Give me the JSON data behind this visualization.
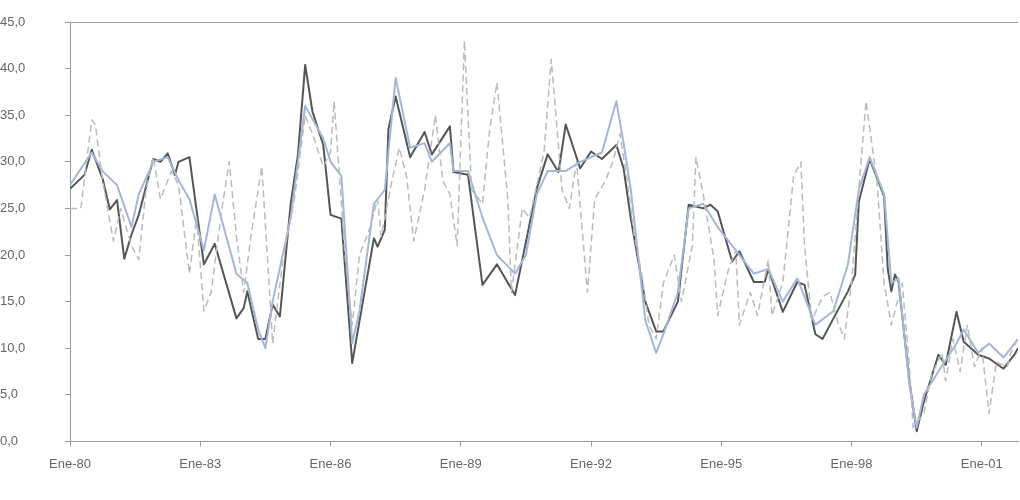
{
  "chart_data": {
    "type": "line",
    "marker": "none",
    "xlim": [
      "1980-01",
      "2001-11"
    ],
    "xticks": [
      {
        "value": "1980-01",
        "label": "Ene-80"
      },
      {
        "value": "1983-01",
        "label": "Ene-83"
      },
      {
        "value": "1986-01",
        "label": "Ene-86"
      },
      {
        "value": "1989-01",
        "label": "Ene-89"
      },
      {
        "value": "1992-01",
        "label": "Ene-92"
      },
      {
        "value": "1995-01",
        "label": "Ene-95"
      },
      {
        "value": "1998-01",
        "label": "Ene-98"
      },
      {
        "value": "2001-01",
        "label": "Ene-01"
      }
    ],
    "ylim": [
      0,
      45
    ],
    "yticks": [
      {
        "value": 0,
        "label": "0,0"
      },
      {
        "value": 5,
        "label": "5,0"
      },
      {
        "value": 10,
        "label": "10,0"
      },
      {
        "value": 15,
        "label": "15,0"
      },
      {
        "value": 20,
        "label": "20,0"
      },
      {
        "value": 25,
        "label": "25,0"
      },
      {
        "value": 30,
        "label": "30,0"
      },
      {
        "value": 35,
        "label": "35,0"
      },
      {
        "value": 40,
        "label": "40,0"
      },
      {
        "value": 45,
        "label": "45,0"
      }
    ],
    "series": [
      {
        "color": "#bbbbbb",
        "line_style": "dashed",
        "x": [
          "1980-01",
          "1980-04",
          "1980-07",
          "1980-08",
          "1980-10",
          "1981-01",
          "1981-03",
          "1981-06",
          "1981-08",
          "1981-10",
          "1981-12",
          "1982-02",
          "1982-05",
          "1982-07",
          "1982-10",
          "1982-12",
          "1983-02",
          "1983-04",
          "1983-07",
          "1983-09",
          "1983-11",
          "1984-01",
          "1984-03",
          "1984-06",
          "1984-08",
          "1984-09",
          "1984-12",
          "1985-03",
          "1985-06",
          "1985-08",
          "1985-11",
          "1986-01",
          "1986-02",
          "1986-05",
          "1986-07",
          "1986-09",
          "1986-12",
          "1987-02",
          "1987-03",
          "1987-06",
          "1987-08",
          "1987-10",
          "1987-12",
          "1988-03",
          "1988-06",
          "1988-08",
          "1988-10",
          "1988-12",
          "1989-02",
          "1989-04",
          "1989-07",
          "1989-09",
          "1989-11",
          "1990-02",
          "1990-03",
          "1990-06",
          "1990-08",
          "1990-12",
          "1991-02",
          "1991-05",
          "1991-07",
          "1991-09",
          "1991-12",
          "1992-02",
          "1992-05",
          "1992-07",
          "1992-09",
          "1992-11",
          "1993-01",
          "1993-03",
          "1993-05",
          "1993-07",
          "1993-09",
          "1993-12",
          "1994-02",
          "1994-05",
          "1994-06",
          "1994-08",
          "1994-11",
          "1994-12",
          "1995-03",
          "1995-05",
          "1995-06",
          "1995-09",
          "1995-11",
          "1996-02",
          "1996-03",
          "1996-06",
          "1996-09",
          "1996-11",
          "1996-12",
          "1997-02",
          "1997-05",
          "1997-07",
          "1997-09",
          "1997-11",
          "1998-01",
          "1998-03",
          "1998-05",
          "1998-08",
          "1998-10",
          "1998-12",
          "1999-03",
          "1999-05",
          "1999-06",
          "1999-09",
          "1999-11",
          "2000-02",
          "2000-03",
          "2000-05",
          "2000-07",
          "2000-09",
          "2000-11",
          "2001-01",
          "2001-03",
          "2001-05",
          "2001-08",
          "2001-09",
          "2001-11"
        ],
        "values": [
          25.0,
          25.0,
          34.5,
          34.0,
          28.0,
          21.5,
          25.0,
          21.0,
          19.5,
          27.0,
          30.5,
          26.0,
          29.0,
          27.5,
          18.0,
          24.0,
          14.0,
          16.0,
          25.0,
          30.0,
          22.0,
          16.0,
          22.0,
          29.5,
          17.0,
          10.5,
          20.0,
          26.0,
          35.0,
          33.0,
          29.5,
          31.0,
          36.5,
          20.0,
          12.5,
          20.0,
          23.0,
          26.0,
          22.0,
          28.0,
          31.5,
          28.5,
          21.5,
          27.0,
          35.0,
          28.0,
          26.5,
          21.0,
          43.0,
          27.0,
          25.5,
          33.5,
          38.5,
          26.0,
          16.0,
          25.0,
          24.0,
          31.0,
          41.0,
          27.0,
          25.0,
          30.0,
          16.0,
          26.0,
          28.0,
          30.0,
          33.0,
          28.0,
          22.0,
          18.0,
          12.5,
          11.0,
          17.0,
          20.0,
          15.0,
          21.0,
          30.5,
          26.5,
          19.5,
          13.5,
          18.5,
          20.5,
          12.5,
          16.0,
          13.5,
          19.5,
          13.5,
          17.0,
          28.5,
          30.0,
          21.0,
          13.0,
          15.5,
          16.0,
          13.0,
          11.0,
          17.0,
          27.0,
          36.5,
          28.0,
          17.0,
          12.5,
          17.0,
          8.0,
          1.5,
          3.0,
          7.0,
          9.5,
          6.5,
          11.0,
          7.5,
          12.5,
          8.0,
          10.0,
          3.0,
          8.5,
          8.0,
          9.5,
          11.0
        ]
      },
      {
        "color": "#a5b6d8",
        "line_style": "solid",
        "x": [
          "1980-01",
          "1980-07",
          "1980-10",
          "1981-02",
          "1981-06",
          "1981-08",
          "1981-12",
          "1982-04",
          "1982-07",
          "1982-10",
          "1983-02",
          "1983-05",
          "1983-11",
          "1984-02",
          "1984-05",
          "1984-07",
          "1984-09",
          "1985-02",
          "1985-06",
          "1985-11",
          "1986-01",
          "1986-04",
          "1986-07",
          "1986-09",
          "1987-01",
          "1987-04",
          "1987-07",
          "1987-11",
          "1988-03",
          "1988-05",
          "1988-10",
          "1988-11",
          "1989-03",
          "1989-07",
          "1989-11",
          "1990-04",
          "1990-07",
          "1990-10",
          "1991-01",
          "1991-06",
          "1991-10",
          "1992-04",
          "1992-08",
          "1992-10",
          "1992-12",
          "1993-04",
          "1993-07",
          "1993-09",
          "1994-01",
          "1994-04",
          "1994-08",
          "1994-12",
          "1995-04",
          "1995-10",
          "1996-02",
          "1996-06",
          "1996-10",
          "1997-03",
          "1997-08",
          "1997-12",
          "1998-03",
          "1998-06",
          "1998-10",
          "1998-12",
          "1999-02",
          "1999-05",
          "1999-07",
          "1999-09",
          "2000-01",
          "2000-06",
          "2000-08",
          "2000-12",
          "2001-03",
          "2001-07",
          "2001-11"
        ],
        "values": [
          27.5,
          31.0,
          29.0,
          27.5,
          23.0,
          26.5,
          30.0,
          30.5,
          28.0,
          26.0,
          20.5,
          26.5,
          18.0,
          17.0,
          12.0,
          10.0,
          15.0,
          24.0,
          36.0,
          32.5,
          30.0,
          28.5,
          10.5,
          14.0,
          25.5,
          27.0,
          39.0,
          31.5,
          32.0,
          30.0,
          32.0,
          29.0,
          29.0,
          24.0,
          20.0,
          18.0,
          20.0,
          26.5,
          29.0,
          29.0,
          30.0,
          31.0,
          36.5,
          32.0,
          27.0,
          13.0,
          9.5,
          11.5,
          16.0,
          25.0,
          25.5,
          23.0,
          21.0,
          18.0,
          18.5,
          15.0,
          17.5,
          12.5,
          14.0,
          19.0,
          27.0,
          30.5,
          26.5,
          17.0,
          17.5,
          6.0,
          1.5,
          5.0,
          7.5,
          10.5,
          12.0,
          9.5,
          10.5,
          9.0,
          11.0
        ]
      },
      {
        "color": "#555555",
        "line_style": "solid",
        "x": [
          "1980-01",
          "1980-05",
          "1980-07",
          "1980-10",
          "1980-12",
          "1981-02",
          "1981-04",
          "1981-06",
          "1981-08",
          "1981-12",
          "1982-02",
          "1982-04",
          "1982-06",
          "1982-07",
          "1982-10",
          "1983-02",
          "1983-05",
          "1983-11",
          "1984-01",
          "1984-02",
          "1984-05",
          "1984-07",
          "1984-09",
          "1984-11",
          "1985-02",
          "1985-04",
          "1985-06",
          "1985-08",
          "1985-11",
          "1986-01",
          "1986-04",
          "1986-07",
          "1986-09",
          "1987-01",
          "1987-02",
          "1987-04",
          "1987-05",
          "1987-07",
          "1987-11",
          "1988-03",
          "1988-05",
          "1988-10",
          "1988-11",
          "1989-03",
          "1989-07",
          "1989-09",
          "1989-11",
          "1990-04",
          "1990-07",
          "1990-10",
          "1991-01",
          "1991-04",
          "1991-06",
          "1991-10",
          "1992-01",
          "1992-04",
          "1992-08",
          "1992-10",
          "1992-12",
          "1993-04",
          "1993-07",
          "1993-09",
          "1994-01",
          "1994-04",
          "1994-08",
          "1994-10",
          "1994-12",
          "1995-04",
          "1995-06",
          "1995-10",
          "1996-01",
          "1996-02",
          "1996-06",
          "1996-10",
          "1996-12",
          "1997-03",
          "1997-05",
          "1997-08",
          "1997-12",
          "1998-02",
          "1998-03",
          "1998-06",
          "1998-10",
          "1998-11",
          "1998-12",
          "1999-01",
          "1999-02",
          "1999-05",
          "1999-07",
          "1999-09",
          "2000-01",
          "2000-03",
          "2000-06",
          "2000-08",
          "2000-12",
          "2001-03",
          "2001-07",
          "2001-10",
          "2001-11"
        ],
        "values": [
          27.1,
          28.6,
          31.3,
          28.2,
          24.9,
          25.9,
          19.6,
          22.2,
          24.3,
          30.3,
          30.0,
          30.9,
          28.6,
          30.0,
          30.5,
          19.0,
          21.2,
          13.2,
          14.3,
          16.1,
          11.0,
          11.0,
          14.7,
          13.4,
          25.5,
          30.8,
          40.4,
          35.4,
          31.8,
          24.3,
          23.9,
          8.4,
          12.9,
          21.8,
          20.9,
          22.7,
          33.5,
          37.0,
          30.5,
          33.2,
          30.8,
          33.8,
          28.9,
          28.6,
          16.8,
          17.9,
          19.0,
          15.7,
          21.4,
          27.1,
          30.8,
          28.9,
          34.0,
          29.3,
          31.1,
          30.3,
          31.8,
          29.3,
          23.9,
          15.0,
          11.8,
          11.8,
          15.0,
          25.4,
          25.0,
          25.4,
          24.7,
          19.3,
          20.4,
          17.1,
          17.1,
          18.5,
          13.9,
          17.1,
          16.8,
          11.5,
          11.0,
          13.2,
          16.1,
          17.9,
          25.7,
          30.3,
          26.3,
          18.5,
          16.1,
          17.9,
          17.1,
          6.4,
          1.1,
          4.3,
          9.3,
          8.2,
          13.9,
          10.7,
          9.3,
          8.9,
          7.8,
          9.3,
          10.0
        ]
      }
    ]
  }
}
